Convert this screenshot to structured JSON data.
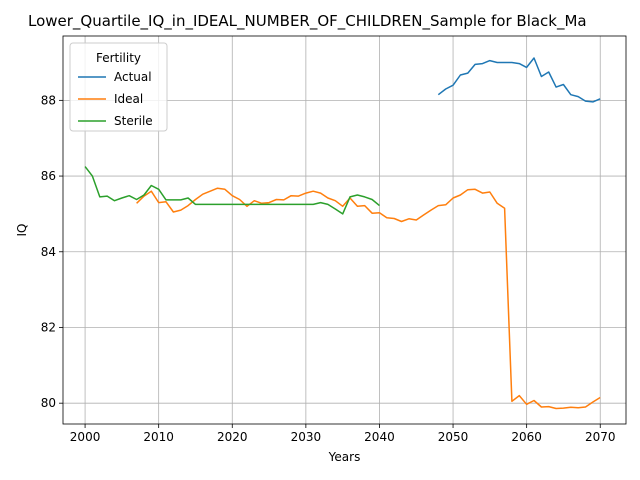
{
  "chart_data": {
    "type": "line",
    "title": "Lower_Quartile_IQ_in_IDEAL_NUMBER_OF_CHILDREN_Sample for Black_Ma",
    "xlabel": "Years",
    "ylabel": "IQ",
    "xlim": [
      1997,
      2073.5
    ],
    "ylim": [
      79.45,
      89.7
    ],
    "xticks": [
      2000,
      2010,
      2020,
      2030,
      2040,
      2050,
      2060,
      2070
    ],
    "yticks": [
      80,
      82,
      84,
      86,
      88
    ],
    "grid": true,
    "legend": {
      "title": "Fertility",
      "placement": "top-left"
    },
    "series": [
      {
        "name": "Actual",
        "color": "#1f77b4",
        "x": [
          2048,
          2049,
          2050,
          2051,
          2052,
          2053,
          2054,
          2055,
          2056,
          2057,
          2058,
          2059,
          2060,
          2061,
          2062,
          2063,
          2064,
          2065,
          2066,
          2067,
          2068,
          2069,
          2070
        ],
        "y": [
          88.15,
          88.3,
          88.4,
          88.67,
          88.72,
          88.95,
          88.97,
          89.05,
          89.0,
          89.0,
          89.0,
          88.97,
          88.87,
          89.12,
          88.63,
          88.75,
          88.35,
          88.42,
          88.15,
          88.1,
          87.98,
          87.96,
          88.04
        ]
      },
      {
        "name": "Ideal",
        "color": "#ff7f0e",
        "x": [
          2007,
          2008,
          2009,
          2010,
          2011,
          2012,
          2013,
          2014,
          2015,
          2016,
          2017,
          2018,
          2019,
          2020,
          2021,
          2022,
          2023,
          2024,
          2025,
          2026,
          2027,
          2028,
          2029,
          2030,
          2031,
          2032,
          2033,
          2034,
          2035,
          2036,
          2037,
          2038,
          2039,
          2040,
          2041,
          2042,
          2043,
          2044,
          2045,
          2046,
          2047,
          2048,
          2049,
          2050,
          2051,
          2052,
          2053,
          2054,
          2055,
          2056,
          2057,
          2058,
          2059,
          2060,
          2061,
          2062,
          2063,
          2064,
          2065,
          2066,
          2067,
          2068,
          2069,
          2070
        ],
        "y": [
          85.28,
          85.47,
          85.6,
          85.3,
          85.32,
          85.05,
          85.1,
          85.22,
          85.38,
          85.52,
          85.6,
          85.68,
          85.65,
          85.48,
          85.38,
          85.2,
          85.35,
          85.28,
          85.3,
          85.38,
          85.37,
          85.48,
          85.47,
          85.55,
          85.6,
          85.55,
          85.42,
          85.35,
          85.2,
          85.42,
          85.2,
          85.22,
          85.02,
          85.03,
          84.9,
          84.88,
          84.8,
          84.87,
          84.84,
          84.97,
          85.1,
          85.22,
          85.24,
          85.42,
          85.5,
          85.64,
          85.65,
          85.55,
          85.58,
          85.28,
          85.15,
          80.05,
          80.2,
          79.97,
          80.07,
          79.9,
          79.91,
          79.86,
          79.87,
          79.89,
          79.88,
          79.9,
          80.03,
          80.15
        ]
      },
      {
        "name": "Sterile",
        "color": "#2ca02c",
        "x": [
          2000,
          2001,
          2002,
          2003,
          2004,
          2005,
          2006,
          2007,
          2008,
          2009,
          2010,
          2011,
          2012,
          2013,
          2014,
          2015,
          2016,
          2017,
          2018,
          2019,
          2020,
          2021,
          2022,
          2023,
          2024,
          2025,
          2026,
          2027,
          2028,
          2029,
          2030,
          2031,
          2032,
          2033,
          2034,
          2035,
          2036,
          2037,
          2038,
          2039,
          2040
        ],
        "y": [
          86.25,
          86.0,
          85.45,
          85.47,
          85.35,
          85.42,
          85.48,
          85.38,
          85.5,
          85.75,
          85.65,
          85.37,
          85.37,
          85.37,
          85.42,
          85.25,
          85.25,
          85.25,
          85.25,
          85.25,
          85.25,
          85.25,
          85.25,
          85.25,
          85.25,
          85.25,
          85.25,
          85.25,
          85.25,
          85.25,
          85.25,
          85.25,
          85.3,
          85.25,
          85.13,
          85.0,
          85.45,
          85.5,
          85.45,
          85.38,
          85.22
        ]
      }
    ]
  }
}
